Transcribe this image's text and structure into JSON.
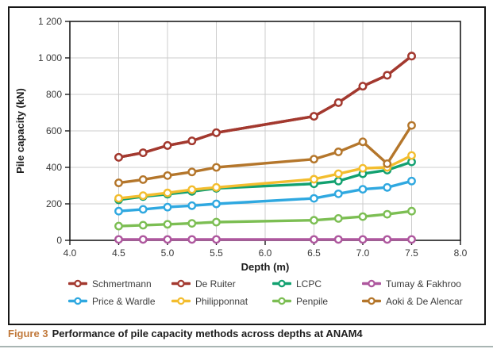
{
  "figure": {
    "caption_label": "Figure 3",
    "caption_text": "Performance of pile capacity methods across depths at ANAM4"
  },
  "style_colors": {
    "caption_label": "#C1793B",
    "frame": "#1c1c1c",
    "grid": "#cccccc",
    "bottom_rule": "#a9b5b3"
  },
  "chart_data": {
    "type": "line",
    "title": "",
    "xlabel": "Depth (m)",
    "ylabel": "Pile capacity (kN)",
    "xlim": [
      4.0,
      8.0
    ],
    "ylim": [
      0,
      1200
    ],
    "x_ticks": [
      4.0,
      4.5,
      5.0,
      5.5,
      6.0,
      6.5,
      7.0,
      7.5,
      8.0
    ],
    "x_tick_labels": [
      "4.0",
      "4.5",
      "5.0",
      "5.5",
      "6.0",
      "6.5",
      "7.0",
      "7.5",
      "8.0"
    ],
    "y_ticks": [
      0,
      200,
      400,
      600,
      800,
      1000,
      1200
    ],
    "y_tick_labels": [
      "0",
      "200",
      "400",
      "600",
      "800",
      "1 000",
      "1 200"
    ],
    "grid": true,
    "legend_position": "bottom",
    "marker": "open-circle",
    "x": [
      4.5,
      4.75,
      5.0,
      5.25,
      5.5,
      6.5,
      6.75,
      7.0,
      7.25,
      7.5
    ],
    "series": [
      {
        "name": "Tumay & Fakhroo",
        "color": "#AE579E",
        "values": [
          5,
          5,
          5,
          5,
          5,
          5,
          5,
          5,
          5,
          5
        ]
      },
      {
        "name": "Penpile",
        "color": "#7CBE53",
        "values": [
          78,
          83,
          88,
          93,
          100,
          110,
          120,
          130,
          143,
          160
        ]
      },
      {
        "name": "Price & Wardle",
        "color": "#2FA8E0",
        "values": [
          160,
          170,
          182,
          190,
          200,
          230,
          255,
          280,
          290,
          325
        ]
      },
      {
        "name": "LCPC",
        "color": "#12A170",
        "values": [
          222,
          240,
          253,
          268,
          285,
          310,
          325,
          365,
          385,
          430
        ]
      },
      {
        "name": "Philipponnat",
        "color": "#F3BD2E",
        "values": [
          230,
          245,
          260,
          278,
          290,
          335,
          365,
          395,
          400,
          465
        ]
      },
      {
        "name": "Aoki & De Alencar",
        "color": "#B4762B",
        "values": [
          315,
          333,
          355,
          375,
          400,
          445,
          485,
          540,
          420,
          630
        ]
      },
      {
        "name": "De Ruiter",
        "color": "#A3392F",
        "values": [
          455,
          480,
          520,
          545,
          590,
          680,
          755,
          845,
          905,
          1010
        ]
      },
      {
        "name": "Schmertmann",
        "color": "#A3392F",
        "values": [
          455,
          480,
          520,
          545,
          590,
          680,
          755,
          845,
          905,
          1010
        ]
      }
    ],
    "legend_rows": [
      [
        "Schmertmann",
        "De Ruiter",
        "LCPC",
        "Tumay & Fakhroo"
      ],
      [
        "Price & Wardle",
        "Philipponnat",
        "Penpile",
        "Aoki & De Alencar"
      ]
    ]
  }
}
